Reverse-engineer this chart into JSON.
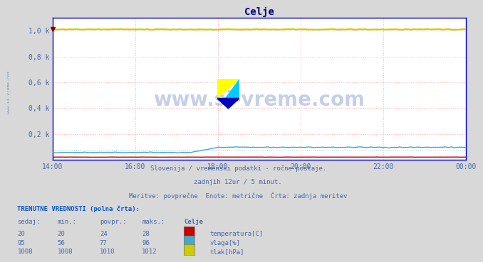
{
  "title": "Celje",
  "background_color": "#d8d8d8",
  "plot_bg_color": "#ffffff",
  "grid_color": "#ffb0b0",
  "ylabel_color": "#4466aa",
  "border_color": "#0000cc",
  "x_ticks": [
    "14:00",
    "16:00",
    "18:00",
    "20:00",
    "22:00",
    "00:00"
  ],
  "x_tick_positions": [
    0,
    24,
    48,
    72,
    96,
    120
  ],
  "n_points": 145,
  "ylim": [
    0,
    1100
  ],
  "yticks": [
    200,
    400,
    600,
    800,
    1000
  ],
  "ytick_labels": [
    "0,2 k",
    "0,4 k",
    "0,6 k",
    "0,8 k",
    "1,0 k"
  ],
  "temp_color": "#cc0000",
  "vlaga_color": "#44aacc",
  "vlaga_dot_color": "#88ccdd",
  "tlak_color": "#cccc00",
  "temp_current": 20,
  "temp_min": 20,
  "temp_max": 28,
  "temp_avg": 24,
  "vlaga_current": 95,
  "vlaga_min": 56,
  "vlaga_max": 96,
  "vlaga_avg": 77,
  "tlak_current": 1008,
  "tlak_min": 1008,
  "tlak_max": 1012,
  "tlak_avg": 1010,
  "subtitle1": "Slovenija / vremenski podatki - ročne postaje.",
  "subtitle2": "zadnjih 12ur / 5 minut.",
  "subtitle3": "Meritve: povprečne  Enote: metrične  Črta: zadnja meritev",
  "table_header": "TRENUTNE VREDNOSTI (polna črta):",
  "col_headers": [
    "sedaj:",
    "min.:",
    "povpr.:",
    "maks.:",
    "Celje"
  ],
  "row1": [
    20,
    20,
    24,
    28,
    "temperatura[C]"
  ],
  "row2": [
    95,
    56,
    77,
    96,
    "vlaga[%]"
  ],
  "row3": [
    1008,
    1008,
    1010,
    1012,
    "tlak[hPa]"
  ],
  "watermark": "www.si-vreme.com",
  "left_label": "www.si-vreme.com"
}
